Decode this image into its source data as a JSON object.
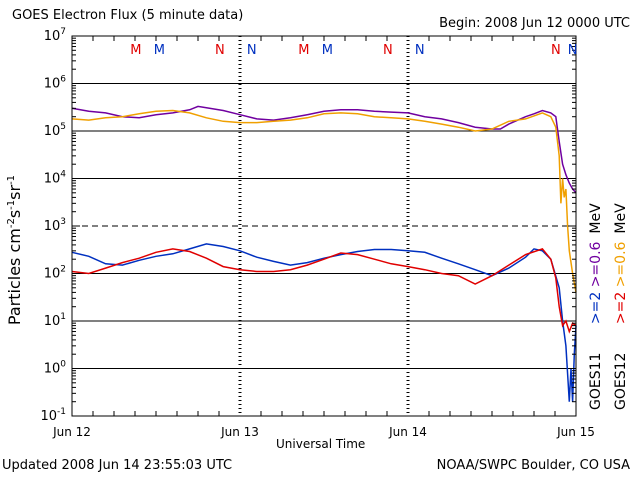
{
  "header": {
    "title": "GOES Electron Flux (5 minute data)",
    "begin": "Begin: 2008 Jun 12 0000 UTC"
  },
  "footer": {
    "updated": "Updated 2008 Jun 14 23:55:03 UTC",
    "credit": "NOAA/SWPC Boulder, CO USA"
  },
  "chart_data": {
    "type": "line",
    "title": "GOES Electron Flux (5 minute data)",
    "xlabel": "Universal Time",
    "ylabel": "Particles cm-2 s-1 sr-1",
    "yscale": "log",
    "ylim": [
      0.1,
      10000000
    ],
    "ytick_exponents": [
      -1,
      0,
      1,
      2,
      3,
      4,
      5,
      6,
      7
    ],
    "xlim_days": [
      0,
      3
    ],
    "xticks": [
      {
        "day": 0,
        "label": "Jun 12"
      },
      {
        "day": 1,
        "label": "Jun 13"
      },
      {
        "day": 2,
        "label": "Jun 14"
      },
      {
        "day": 3,
        "label": "Jun 15"
      }
    ],
    "dashed_reference_line": 1000,
    "markers": [
      {
        "day": 0.38,
        "label": "M",
        "color": "#e00000"
      },
      {
        "day": 0.52,
        "label": "M",
        "color": "#0030c0"
      },
      {
        "day": 0.88,
        "label": "N",
        "color": "#e00000"
      },
      {
        "day": 1.07,
        "label": "N",
        "color": "#0030c0"
      },
      {
        "day": 1.38,
        "label": "M",
        "color": "#e00000"
      },
      {
        "day": 1.52,
        "label": "M",
        "color": "#0030c0"
      },
      {
        "day": 1.88,
        "label": "N",
        "color": "#e00000"
      },
      {
        "day": 2.07,
        "label": "N",
        "color": "#0030c0"
      },
      {
        "day": 2.88,
        "label": "N",
        "color": "#e00000"
      },
      {
        "day": 2.98,
        "label": "N",
        "color": "#0030c0"
      }
    ],
    "legend": {
      "placement": "right",
      "goes11_label": "GOES11",
      "goes12_label": "GOES12",
      "entries": [
        {
          "name": ">=2 >=0.6",
          "sat": "GOES11",
          "colors": [
            "#0030c0",
            "#7000a0"
          ],
          "parts": [
            ">=2",
            ">=0.6"
          ],
          "unit": "MeV"
        },
        {
          "name": ">=2 >=0.6",
          "sat": "GOES12",
          "colors": [
            "#e00000",
            "#f0a000"
          ],
          "parts": [
            ">=2",
            ">=0.6"
          ],
          "unit": "MeV"
        }
      ]
    },
    "series": [
      {
        "name": "GOES11 >=0.6 MeV",
        "color": "#7000a0",
        "x": [
          0,
          0.1,
          0.2,
          0.3,
          0.4,
          0.5,
          0.6,
          0.7,
          0.75,
          0.8,
          0.9,
          1.0,
          1.1,
          1.2,
          1.3,
          1.4,
          1.5,
          1.6,
          1.7,
          1.8,
          1.9,
          2.0,
          2.1,
          2.2,
          2.3,
          2.4,
          2.5,
          2.55,
          2.6,
          2.7,
          2.75,
          2.8,
          2.85,
          2.88,
          2.9,
          2.92,
          2.94,
          2.96,
          2.98,
          3.0
        ],
        "y": [
          300000,
          260000,
          240000,
          200000,
          190000,
          220000,
          240000,
          280000,
          330000,
          310000,
          270000,
          220000,
          180000,
          170000,
          190000,
          220000,
          260000,
          280000,
          280000,
          260000,
          250000,
          240000,
          200000,
          180000,
          150000,
          120000,
          110000,
          110000,
          140000,
          200000,
          230000,
          270000,
          240000,
          200000,
          60000,
          20000,
          12000,
          8000,
          6000,
          5000
        ]
      },
      {
        "name": "GOES12 >=0.6 MeV",
        "color": "#f0a000",
        "x": [
          0,
          0.1,
          0.2,
          0.3,
          0.4,
          0.5,
          0.6,
          0.7,
          0.8,
          0.9,
          1.0,
          1.1,
          1.2,
          1.3,
          1.4,
          1.5,
          1.6,
          1.7,
          1.8,
          1.9,
          2.0,
          2.1,
          2.2,
          2.3,
          2.4,
          2.5,
          2.6,
          2.7,
          2.8,
          2.85,
          2.88,
          2.9,
          2.91,
          2.92,
          2.93,
          2.94,
          2.95,
          2.96,
          2.98,
          3.0
        ],
        "y": [
          180000,
          170000,
          190000,
          200000,
          230000,
          260000,
          270000,
          240000,
          190000,
          160000,
          150000,
          150000,
          160000,
          170000,
          190000,
          230000,
          240000,
          230000,
          200000,
          190000,
          180000,
          160000,
          140000,
          120000,
          100000,
          110000,
          160000,
          180000,
          240000,
          200000,
          120000,
          30000,
          3000,
          10000,
          4000,
          6000,
          1000,
          300,
          100,
          40
        ]
      },
      {
        "name": "GOES11 >=2 MeV",
        "color": "#0030c0",
        "x": [
          0,
          0.1,
          0.2,
          0.3,
          0.4,
          0.5,
          0.6,
          0.7,
          0.8,
          0.9,
          1.0,
          1.1,
          1.2,
          1.3,
          1.4,
          1.5,
          1.6,
          1.7,
          1.8,
          1.9,
          2.0,
          2.1,
          2.2,
          2.3,
          2.4,
          2.5,
          2.6,
          2.7,
          2.75,
          2.8,
          2.85,
          2.9,
          2.92,
          2.94,
          2.96,
          2.97,
          2.98,
          2.99,
          3.0
        ],
        "y": [
          280,
          230,
          160,
          150,
          190,
          230,
          260,
          330,
          420,
          370,
          300,
          220,
          180,
          150,
          170,
          210,
          250,
          290,
          320,
          320,
          300,
          280,
          210,
          160,
          120,
          90,
          130,
          220,
          330,
          300,
          200,
          50,
          10,
          3,
          0.2,
          1,
          0.2,
          2,
          8
        ]
      },
      {
        "name": "GOES12 >=2 MeV",
        "color": "#e00000",
        "x": [
          0,
          0.1,
          0.2,
          0.3,
          0.4,
          0.5,
          0.6,
          0.7,
          0.8,
          0.9,
          1.0,
          1.1,
          1.2,
          1.3,
          1.4,
          1.5,
          1.6,
          1.7,
          1.8,
          1.9,
          2.0,
          2.1,
          2.2,
          2.3,
          2.4,
          2.5,
          2.6,
          2.7,
          2.8,
          2.85,
          2.88,
          2.9,
          2.92,
          2.94,
          2.96,
          2.98,
          3.0
        ],
        "y": [
          110,
          100,
          130,
          170,
          210,
          280,
          330,
          290,
          210,
          140,
          120,
          110,
          110,
          120,
          150,
          200,
          270,
          250,
          200,
          160,
          140,
          120,
          100,
          90,
          60,
          90,
          150,
          250,
          330,
          200,
          80,
          20,
          8,
          10,
          6,
          9,
          8
        ]
      }
    ]
  }
}
